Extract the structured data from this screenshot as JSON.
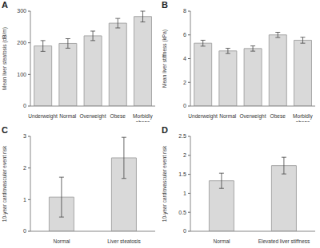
{
  "chart_data": [
    {
      "type": "bar",
      "title": "A",
      "ylabel": "Mean liver steatosis (dB/m)",
      "categories": [
        "Underweight",
        "Normal",
        "Overweight",
        "Obese",
        "Morbidly obese"
      ],
      "values": [
        190,
        198,
        222,
        262,
        283
      ],
      "errors": [
        17,
        15,
        15,
        15,
        17
      ],
      "color": "#d9d9d9",
      "ylim": [
        0,
        300
      ],
      "yticks": [
        0,
        100,
        200,
        300
      ]
    },
    {
      "type": "bar",
      "title": "B",
      "ylabel": "Mean liver stiffness (kPa)",
      "categories": [
        "Underweight",
        "Normal",
        "Overweight",
        "Obese",
        "Morbidly obese"
      ],
      "values": [
        5.3,
        4.65,
        4.85,
        6.0,
        5.55
      ],
      "errors": [
        0.25,
        0.22,
        0.22,
        0.22,
        0.25
      ],
      "color": "#d9d9d9",
      "ylim": [
        0,
        8
      ],
      "yticks": [
        0,
        2,
        4,
        6,
        8
      ]
    },
    {
      "type": "bar",
      "title": "C",
      "ylabel": "10-year cardiovascular event risk",
      "categories": [
        "Normal",
        "Liver steatosis"
      ],
      "values": [
        1.08,
        2.32
      ],
      "errors": [
        0.63,
        0.65
      ],
      "color": "#d9d9d9",
      "ylim": [
        0,
        3
      ],
      "yticks": [
        0,
        1,
        2,
        3
      ]
    },
    {
      "type": "bar",
      "title": "D",
      "ylabel": "10-year cardiovascular event risk",
      "categories": [
        "Normal",
        "Elevated liver stiffness"
      ],
      "values": [
        1.33,
        1.73
      ],
      "errors": [
        0.2,
        0.22
      ],
      "color": "#d9d9d9",
      "ylim": [
        0,
        2.5
      ],
      "yticks": [
        0,
        0.5,
        1,
        1.5,
        2,
        2.5
      ]
    }
  ]
}
